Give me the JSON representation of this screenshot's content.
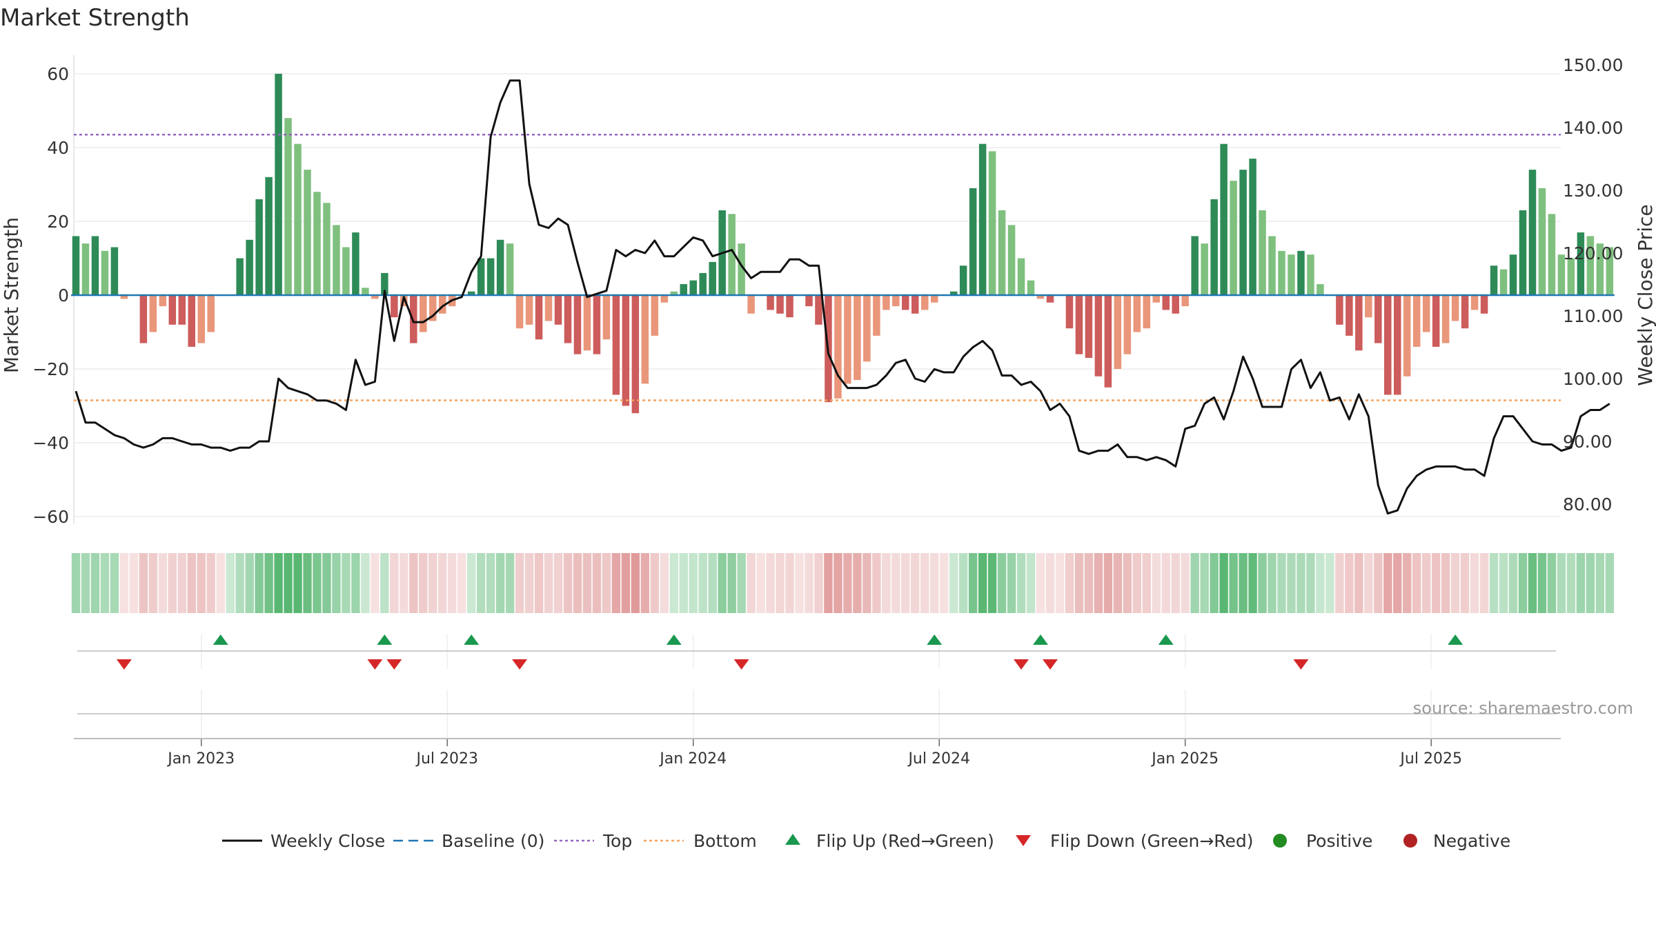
{
  "title": "Market Strength",
  "colors": {
    "bar_pos_strong": "#2e8b57",
    "bar_pos_weak": "#7fc07f",
    "bar_neg_strong": "#cd5c5c",
    "bar_neg_weak": "#e9967a",
    "close_line": "#111111",
    "baseline": "#1f77b4",
    "top_line": "#9467bd",
    "bottom_line": "#f4a460",
    "flip_up": "#1a9850",
    "flip_down": "#d62728",
    "positive": "#228b22",
    "negative": "#b22222"
  },
  "chart_data": {
    "type": "bar",
    "y_left_label": "Market Strength",
    "y_right_label": "Weekly Close Price",
    "y_left_ticks": [
      "60",
      "40",
      "20",
      "0",
      "−20",
      "−40",
      "−60"
    ],
    "y_left_range": [
      -65,
      64
    ],
    "y_right_ticks": [
      "150.00",
      "140.00",
      "130.00",
      "120.00",
      "110.00",
      "100.00",
      "90.00",
      "80.00"
    ],
    "y_right_range": [
      77,
      152
    ],
    "x_tick_labels": [
      "Jan 2023",
      "Jul 2023",
      "Jan 2024",
      "Jul 2024",
      "Jan 2025",
      "Jul 2025"
    ],
    "x_tick_index": [
      13,
      38.5,
      64,
      89.5,
      115,
      140.5
    ],
    "top_threshold": 43.5,
    "bottom_threshold": -28.5,
    "baseline": 0,
    "legend": [
      {
        "key": "line",
        "label": "Weekly Close"
      },
      {
        "key": "baseline",
        "label": "Baseline (0)"
      },
      {
        "key": "top",
        "label": "Top"
      },
      {
        "key": "bottom",
        "label": "Bottom"
      },
      {
        "key": "flip_up",
        "label": "Flip Up (Red→Green)"
      },
      {
        "key": "flip_down",
        "label": "Flip Down (Green→Red)"
      },
      {
        "key": "positive",
        "label": "Positive"
      },
      {
        "key": "negative",
        "label": "Negative"
      }
    ],
    "strength": [
      16,
      14,
      16,
      12,
      13,
      -1,
      0,
      -13,
      -10,
      -3,
      -8,
      -8,
      -14,
      -13,
      -10,
      0,
      0,
      10,
      15,
      26,
      32,
      60,
      48,
      41,
      34,
      28,
      25,
      19,
      13,
      17,
      2,
      -1,
      6,
      -6,
      -3,
      -13,
      -10,
      -7,
      -5,
      -3,
      0,
      1,
      10,
      10,
      15,
      14,
      -9,
      -8,
      -12,
      -7,
      -8,
      -13,
      -16,
      -15,
      -16,
      -12,
      -27,
      -30,
      -32,
      -24,
      -11,
      -2,
      1,
      3,
      4,
      6,
      9,
      23,
      22,
      14,
      -5,
      0,
      -4,
      -5,
      -6,
      0,
      -3,
      -8,
      -29,
      -28,
      -24,
      -23,
      -18,
      -11,
      -4,
      -3,
      -4,
      -5,
      -4,
      -2,
      0,
      1,
      8,
      29,
      41,
      39,
      23,
      19,
      10,
      4,
      -1,
      -2,
      0,
      -9,
      -16,
      -17,
      -22,
      -25,
      -20,
      -16,
      -10,
      -9,
      -2,
      -4,
      -5,
      -3,
      16,
      14,
      26,
      41,
      31,
      34,
      37,
      23,
      16,
      12,
      11,
      12,
      11,
      3,
      0,
      -8,
      -11,
      -15,
      -6,
      -13,
      -27,
      -27,
      -22,
      -14,
      -10,
      -14,
      -13,
      -7,
      -9,
      -4,
      -5,
      8,
      7,
      11,
      23,
      34,
      29,
      22,
      11,
      10,
      17,
      16,
      14,
      13
    ],
    "weekly_close": [
      98,
      93,
      93,
      92,
      91,
      90.5,
      89.5,
      89,
      89.5,
      90.5,
      90.5,
      90,
      89.5,
      89.5,
      89,
      89,
      88.5,
      89,
      89,
      90,
      90,
      100,
      98.5,
      98,
      97.5,
      96.5,
      96.5,
      96,
      95,
      103,
      99,
      99.5,
      114,
      106,
      113,
      109,
      109,
      110,
      111.5,
      112.5,
      113,
      117,
      119.5,
      138.5,
      144,
      147.5,
      147.5,
      131,
      124.5,
      124,
      125.5,
      124.5,
      118.5,
      113,
      113.5,
      114,
      120.5,
      119.5,
      120.5,
      120,
      122,
      119.5,
      119.5,
      121,
      122.5,
      122,
      119.5,
      120,
      120.5,
      118,
      116,
      117,
      117,
      117,
      119,
      119,
      118,
      118,
      104,
      100.5,
      98.5,
      98.5,
      98.5,
      99,
      100.5,
      102.5,
      103,
      100,
      99.5,
      101.5,
      101,
      101,
      103.5,
      105,
      106,
      104.5,
      100.5,
      100.5,
      99,
      99.5,
      98,
      95,
      96,
      94,
      88.5,
      88,
      88.5,
      88.5,
      89.5,
      87.5,
      87.5,
      87,
      87.5,
      87,
      86,
      92,
      92.5,
      96,
      97,
      93.5,
      98,
      103.5,
      100,
      95.5,
      95.5,
      95.5,
      101.5,
      103,
      98.5,
      101,
      96.5,
      97,
      93.5,
      97.5,
      94,
      83,
      78.5,
      79,
      82.5,
      84.5,
      85.5,
      86,
      86,
      86,
      85.5,
      85.5,
      84.5,
      90.5,
      94,
      94,
      92,
      90,
      89.5,
      89.5,
      88.5,
      89,
      94,
      95,
      95,
      96
    ],
    "flip_up_index": [
      15,
      32,
      41,
      62,
      89,
      100,
      113,
      143
    ],
    "flip_down_index": [
      5,
      31,
      33,
      46,
      69,
      98,
      101,
      127
    ]
  },
  "source": "source: sharemaestro.com"
}
